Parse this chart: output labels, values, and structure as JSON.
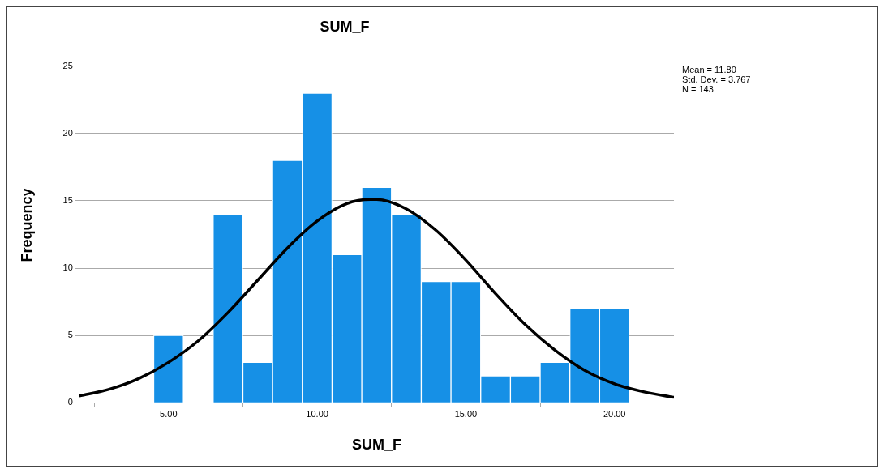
{
  "chart_data": {
    "type": "histogram",
    "title": "SUM_F",
    "xlabel": "SUM_F",
    "ylabel": "Frequency",
    "bins": [
      4.5,
      5.5,
      6.5,
      7.5,
      8.5,
      9.5,
      10.5,
      11.5,
      12.5,
      13.5,
      14.5,
      15.5,
      16.5,
      17.5,
      18.5,
      19.5,
      20.5
    ],
    "values": [
      5,
      0,
      14,
      3,
      18,
      23,
      11,
      16,
      14,
      9,
      9,
      2,
      2,
      3,
      7,
      7
    ],
    "color": "#1690e6",
    "series": [
      {
        "type": "line",
        "color": "#000000",
        "x": [
          2,
          3,
          4,
          5,
          6,
          7,
          8,
          9,
          10,
          11,
          11.8,
          12,
          13,
          14,
          15,
          16,
          17,
          18,
          19,
          20,
          21,
          22
        ],
        "values": [
          0.5,
          1.0,
          1.8,
          3.0,
          4.6,
          6.7,
          9.1,
          11.5,
          13.5,
          14.8,
          15.1,
          15.1,
          14.4,
          12.8,
          10.6,
          8.1,
          5.8,
          3.9,
          2.4,
          1.4,
          0.8,
          0.4
        ]
      }
    ],
    "xlim": [
      2,
      22
    ],
    "xticks": [
      {
        "value": 5,
        "label": "5.00"
      },
      {
        "value": 10,
        "label": "10.00"
      },
      {
        "value": 15,
        "label": "15.00"
      },
      {
        "value": 20,
        "label": "20.00"
      }
    ],
    "ylim": [
      0,
      26.4
    ],
    "yticks": [
      0,
      5,
      10,
      15,
      20,
      25
    ],
    "grid": "y",
    "annotations": [
      "Mean = 11.80",
      "Std. Dev. = 3.767",
      "N = 143"
    ]
  }
}
